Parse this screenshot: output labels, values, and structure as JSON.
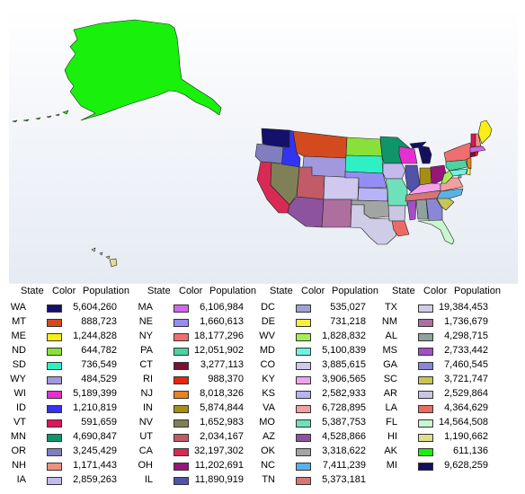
{
  "legend": {
    "headers": {
      "state": "State",
      "color": "Color",
      "population": "Population"
    },
    "columns": [
      [
        {
          "abbr": "WA",
          "color": "#15106b",
          "population": "5,604,260"
        },
        {
          "abbr": "MT",
          "color": "#d34a1e",
          "population": "888,723"
        },
        {
          "abbr": "ME",
          "color": "#f7ef15",
          "population": "1,244,828"
        },
        {
          "abbr": "ND",
          "color": "#8ae03a",
          "population": "644,782"
        },
        {
          "abbr": "SD",
          "color": "#2ef1c3",
          "population": "736,549"
        },
        {
          "abbr": "WY",
          "color": "#a198dd",
          "population": "484,529"
        },
        {
          "abbr": "WI",
          "color": "#e52fd0",
          "population": "5,189,399"
        },
        {
          "abbr": "ID",
          "color": "#3433f0",
          "population": "1,210,819"
        },
        {
          "abbr": "VT",
          "color": "#e01457",
          "population": "591,659"
        },
        {
          "abbr": "MN",
          "color": "#10956b",
          "population": "4,690,847"
        },
        {
          "abbr": "OR",
          "color": "#7f7fbf",
          "population": "3,245,429"
        },
        {
          "abbr": "NH",
          "color": "#eb9280",
          "population": "1,171,443"
        },
        {
          "abbr": "IA",
          "color": "#c4baee",
          "population": "2,859,263"
        }
      ],
      [
        {
          "abbr": "MA",
          "color": "#cf67ea",
          "population": "6,106,984"
        },
        {
          "abbr": "NE",
          "color": "#948ef3",
          "population": "1,660,613"
        },
        {
          "abbr": "NY",
          "color": "#f06e70",
          "population": "18,177,296"
        },
        {
          "abbr": "PA",
          "color": "#4bd3a0",
          "population": "12,051,902"
        },
        {
          "abbr": "CT",
          "color": "#7a1331",
          "population": "3,277,113"
        },
        {
          "abbr": "RI",
          "color": "#e7260d",
          "population": "988,370"
        },
        {
          "abbr": "NJ",
          "color": "#e8831e",
          "population": "8,018,326"
        },
        {
          "abbr": "IN",
          "color": "#a78d14",
          "population": "5,874,844"
        },
        {
          "abbr": "NV",
          "color": "#808057",
          "population": "1,652,983"
        },
        {
          "abbr": "UT",
          "color": "#c05b67",
          "population": "2,034,167"
        },
        {
          "abbr": "CA",
          "color": "#d92a56",
          "population": "32,197,302"
        },
        {
          "abbr": "OH",
          "color": "#96167a",
          "population": "11,202,691"
        },
        {
          "abbr": "IL",
          "color": "#5152a8",
          "population": "11,890,919"
        }
      ],
      [
        {
          "abbr": "DC",
          "color": "#a2a0d8",
          "population": "535,027"
        },
        {
          "abbr": "DE",
          "color": "#f5f03a",
          "population": "731,218"
        },
        {
          "abbr": "WV",
          "color": "#a2ef5c",
          "population": "1,828,832"
        },
        {
          "abbr": "MD",
          "color": "#6ff3df",
          "population": "5,100,839"
        },
        {
          "abbr": "CO",
          "color": "#d0c8ee",
          "population": "3,885,615"
        },
        {
          "abbr": "KY",
          "color": "#f1a2ec",
          "population": "3,906,565"
        },
        {
          "abbr": "KS",
          "color": "#b6b4f6",
          "population": "2,582,933"
        },
        {
          "abbr": "VA",
          "color": "#f29f9f",
          "population": "6,728,895"
        },
        {
          "abbr": "MO",
          "color": "#6ee0ba",
          "population": "5,387,753"
        },
        {
          "abbr": "AZ",
          "color": "#8e539e",
          "population": "4,528,866"
        },
        {
          "abbr": "OK",
          "color": "#a2a6a2",
          "population": "3,318,622"
        },
        {
          "abbr": "NC",
          "color": "#5ab1e6",
          "population": "7,411,239"
        },
        {
          "abbr": "TN",
          "color": "#d67677",
          "population": "5,373,181"
        }
      ],
      [
        {
          "abbr": "TX",
          "color": "#cfcce8",
          "population": "19,384,453"
        },
        {
          "abbr": "NM",
          "color": "#ad6f9e",
          "population": "1,736,679"
        },
        {
          "abbr": "AL",
          "color": "#8fa29f",
          "population": "4,298,715"
        },
        {
          "abbr": "MS",
          "color": "#a44ec4",
          "population": "2,733,442"
        },
        {
          "abbr": "GA",
          "color": "#8a87d6",
          "population": "7,460,545"
        },
        {
          "abbr": "SC",
          "color": "#c8c456",
          "population": "3,721,747"
        },
        {
          "abbr": "AR",
          "color": "#c9c7e4",
          "population": "2,529,864"
        },
        {
          "abbr": "LA",
          "color": "#ea6b64",
          "population": "4,364,629"
        },
        {
          "abbr": "FL",
          "color": "#c9f7cf",
          "population": "14,564,508"
        },
        {
          "abbr": "HI",
          "color": "#e0de90",
          "population": "1,190,662"
        },
        {
          "abbr": "AK",
          "color": "#19f00b",
          "population": "611,136"
        },
        {
          "abbr": "MI",
          "color": "#14105f",
          "population": "9,628,259"
        }
      ]
    ]
  }
}
